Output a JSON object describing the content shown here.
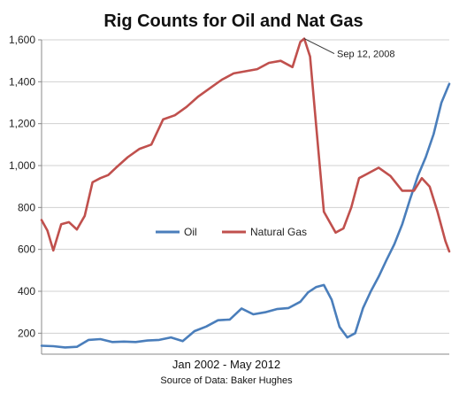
{
  "chart_data": {
    "type": "line",
    "title": "Rig Counts for Oil and Nat Gas",
    "xlabel": "Jan 2002 - May 2012",
    "source": "Source of Data: Baker Hughes",
    "ylabel": "",
    "xlim": [
      2002.0,
      2012.4
    ],
    "ylim": [
      100,
      1600
    ],
    "yticks": [
      200,
      400,
      600,
      800,
      1000,
      1200,
      1400,
      1600
    ],
    "ytick_labels": [
      "200",
      "400",
      "600",
      "800",
      "1,000",
      "1,200",
      "1,400",
      "1,600"
    ],
    "grid": {
      "horizontal": true,
      "vertical": false
    },
    "legend": {
      "placement": "center-left"
    },
    "annotation": {
      "text": "Sep 12, 2008",
      "x": 2008.7,
      "y": 1606
    },
    "series": [
      {
        "name": "Oil",
        "color": "#4a7ebb",
        "x": [
          2002.0,
          2002.3,
          2002.6,
          2002.9,
          2003.2,
          2003.5,
          2003.8,
          2004.1,
          2004.4,
          2004.7,
          2005.0,
          2005.3,
          2005.6,
          2005.9,
          2006.2,
          2006.5,
          2006.8,
          2007.1,
          2007.4,
          2007.7,
          2008.0,
          2008.3,
          2008.6,
          2008.8,
          2009.0,
          2009.2,
          2009.4,
          2009.6,
          2009.8,
          2010.0,
          2010.2,
          2010.4,
          2010.6,
          2010.8,
          2011.0,
          2011.2,
          2011.4,
          2011.6,
          2011.8,
          2012.0,
          2012.2,
          2012.4
        ],
        "values": [
          140,
          138,
          132,
          135,
          168,
          172,
          158,
          160,
          158,
          165,
          168,
          180,
          162,
          210,
          232,
          262,
          265,
          318,
          290,
          300,
          315,
          320,
          350,
          395,
          420,
          430,
          360,
          230,
          180,
          200,
          320,
          400,
          470,
          550,
          625,
          720,
          840,
          950,
          1040,
          1150,
          1300,
          1390
        ]
      },
      {
        "name": "Natural Gas",
        "color": "#c0504d",
        "x": [
          2002.0,
          2002.15,
          2002.3,
          2002.5,
          2002.7,
          2002.9,
          2003.1,
          2003.3,
          2003.5,
          2003.7,
          2003.9,
          2004.2,
          2004.5,
          2004.8,
          2005.1,
          2005.4,
          2005.7,
          2006.0,
          2006.3,
          2006.6,
          2006.9,
          2007.2,
          2007.5,
          2007.8,
          2008.1,
          2008.4,
          2008.6,
          2008.7,
          2008.85,
          2009.0,
          2009.2,
          2009.5,
          2009.7,
          2009.9,
          2010.1,
          2010.3,
          2010.6,
          2010.9,
          2011.2,
          2011.5,
          2011.7,
          2011.9,
          2012.1,
          2012.3,
          2012.4
        ],
        "values": [
          740,
          690,
          595,
          720,
          730,
          695,
          760,
          920,
          940,
          955,
          990,
          1040,
          1080,
          1100,
          1220,
          1240,
          1280,
          1330,
          1370,
          1410,
          1440,
          1450,
          1460,
          1490,
          1500,
          1470,
          1590,
          1606,
          1520,
          1200,
          780,
          680,
          700,
          800,
          940,
          960,
          990,
          950,
          880,
          880,
          940,
          900,
          780,
          640,
          590
        ]
      }
    ]
  }
}
